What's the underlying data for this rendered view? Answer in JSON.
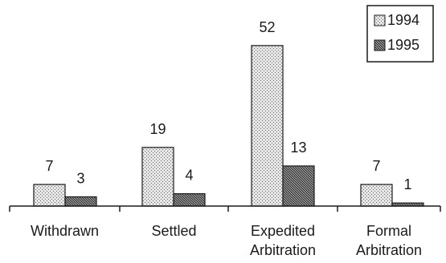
{
  "chart_data": {
    "type": "bar",
    "categories": [
      [
        "Withdrawn"
      ],
      [
        "Settled"
      ],
      [
        "Expedited",
        "Arbitration"
      ],
      [
        "Formal",
        "Arbitration"
      ]
    ],
    "series": [
      {
        "name": "1994",
        "values": [
          7,
          19,
          52,
          7
        ],
        "color": "#d4d4d4"
      },
      {
        "name": "1995",
        "values": [
          3,
          4,
          13,
          1
        ],
        "color": "#6e6e6e"
      }
    ],
    "ylim": [
      0,
      55
    ],
    "grid": false,
    "legend": "top-right",
    "title": "",
    "xlabel": "",
    "ylabel": ""
  }
}
